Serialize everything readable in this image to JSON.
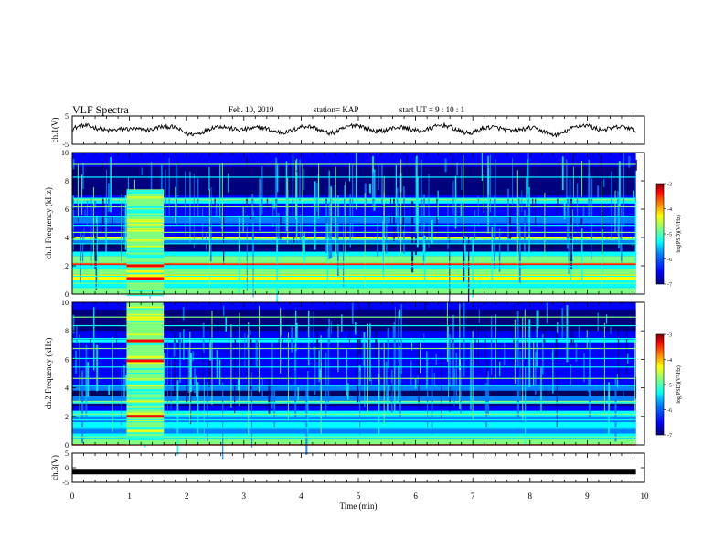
{
  "header": {
    "title": "VLF Spectra",
    "date": "Feb. 10, 2019",
    "station": "station= KAP",
    "start": "start  UT =   9 : 10 : 1"
  },
  "colors": {
    "colormap": [
      "#00007f",
      "#0000ff",
      "#007fff",
      "#00ffff",
      "#7fff7f",
      "#ffff00",
      "#ff7f00",
      "#ff0000",
      "#7f0000"
    ],
    "trace": "#000000",
    "background": "#ffffff"
  },
  "chart_data": [
    {
      "type": "line",
      "panel": "ch1-voltage",
      "ylabel": "ch.1(V)",
      "ylim": [
        -5,
        5
      ],
      "yticks": [
        "5",
        "-5"
      ],
      "x": [
        0,
        0.5,
        1,
        1.5,
        2,
        2.5,
        3,
        3.5,
        4,
        4.5,
        5,
        5.5,
        6,
        6.5,
        7,
        7.5,
        8,
        8.5,
        9,
        9.5,
        9.85
      ],
      "y": [
        0.5,
        1,
        -0.5,
        1.5,
        -1,
        0.5,
        1,
        -0.5,
        0.8,
        -0.3,
        1.2,
        0,
        0.5,
        1,
        -0.5,
        0.8,
        0,
        -1,
        1.5,
        0.5,
        0
      ]
    },
    {
      "type": "heatmap",
      "panel": "ch1-spectrogram",
      "ylabel": "ch.1 Frequency (kHz)",
      "ylim": [
        0,
        10
      ],
      "yticks": [
        "0",
        "2",
        "4",
        "6",
        "8",
        "10"
      ],
      "xlim": [
        0,
        10
      ],
      "burst_interval_min": [
        0.95,
        1.6
      ],
      "colorbar": {
        "label": "log(PSD)(V²/Hz)",
        "range": [
          -7,
          -3
        ],
        "ticks": [
          "-3",
          "-4",
          "-5",
          "-6",
          "-7"
        ]
      }
    },
    {
      "type": "heatmap",
      "panel": "ch2-spectrogram",
      "ylabel": "ch.2 Frequency (kHz)",
      "ylim": [
        0,
        10
      ],
      "yticks": [
        "0",
        "2",
        "4",
        "6",
        "8",
        "10"
      ],
      "xlim": [
        0,
        10
      ],
      "burst_interval_min": [
        0.95,
        1.6
      ],
      "colorbar": {
        "label": "log(PSD)(V²/Hz)",
        "range": [
          -7,
          -3
        ],
        "ticks": [
          "-3",
          "-4",
          "-5",
          "-6",
          "-7"
        ]
      }
    },
    {
      "type": "line",
      "panel": "ch3-voltage",
      "ylabel": "ch.3(V)",
      "ylim": [
        -5,
        5
      ],
      "yticks": [
        "5",
        "0",
        "-5"
      ],
      "x": [
        0,
        9.85
      ],
      "y": [
        -1.5,
        -1.5
      ]
    }
  ],
  "xaxis": {
    "label": "Time  (min)",
    "ticks": [
      "0",
      "1",
      "2",
      "3",
      "4",
      "5",
      "6",
      "7",
      "8",
      "9",
      "10"
    ],
    "xlim": [
      0,
      10
    ]
  }
}
